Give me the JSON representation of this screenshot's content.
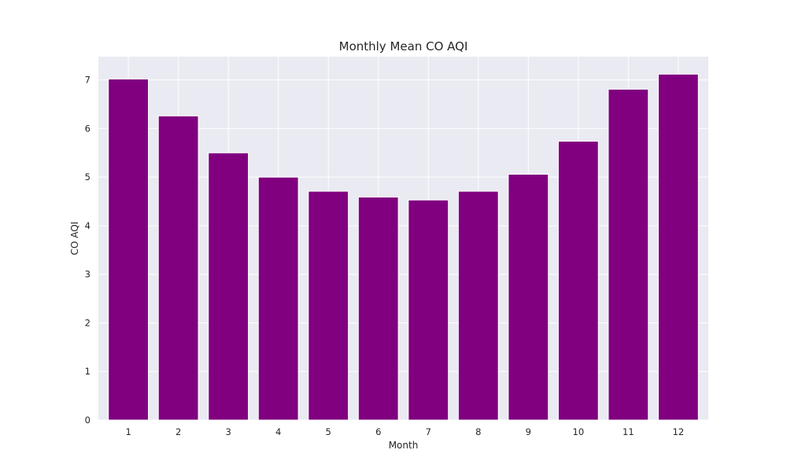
{
  "chart_data": {
    "type": "bar",
    "title": "Monthly Mean CO AQI",
    "xlabel": "Month",
    "ylabel": "CO AQI",
    "categories": [
      "1",
      "2",
      "3",
      "4",
      "5",
      "6",
      "7",
      "8",
      "9",
      "10",
      "11",
      "12"
    ],
    "values": [
      7.02,
      6.26,
      5.5,
      5.0,
      4.71,
      4.59,
      4.53,
      4.71,
      5.06,
      5.74,
      6.81,
      7.12
    ],
    "ylim": [
      0,
      7.48
    ],
    "yticks": [
      0,
      1,
      2,
      3,
      4,
      5,
      6,
      7
    ],
    "grid": true,
    "legend": "none",
    "colors": {
      "bar": "#800080",
      "plot_background": "#eaeaf2",
      "grid": "#ffffff",
      "text": "#262626"
    }
  }
}
